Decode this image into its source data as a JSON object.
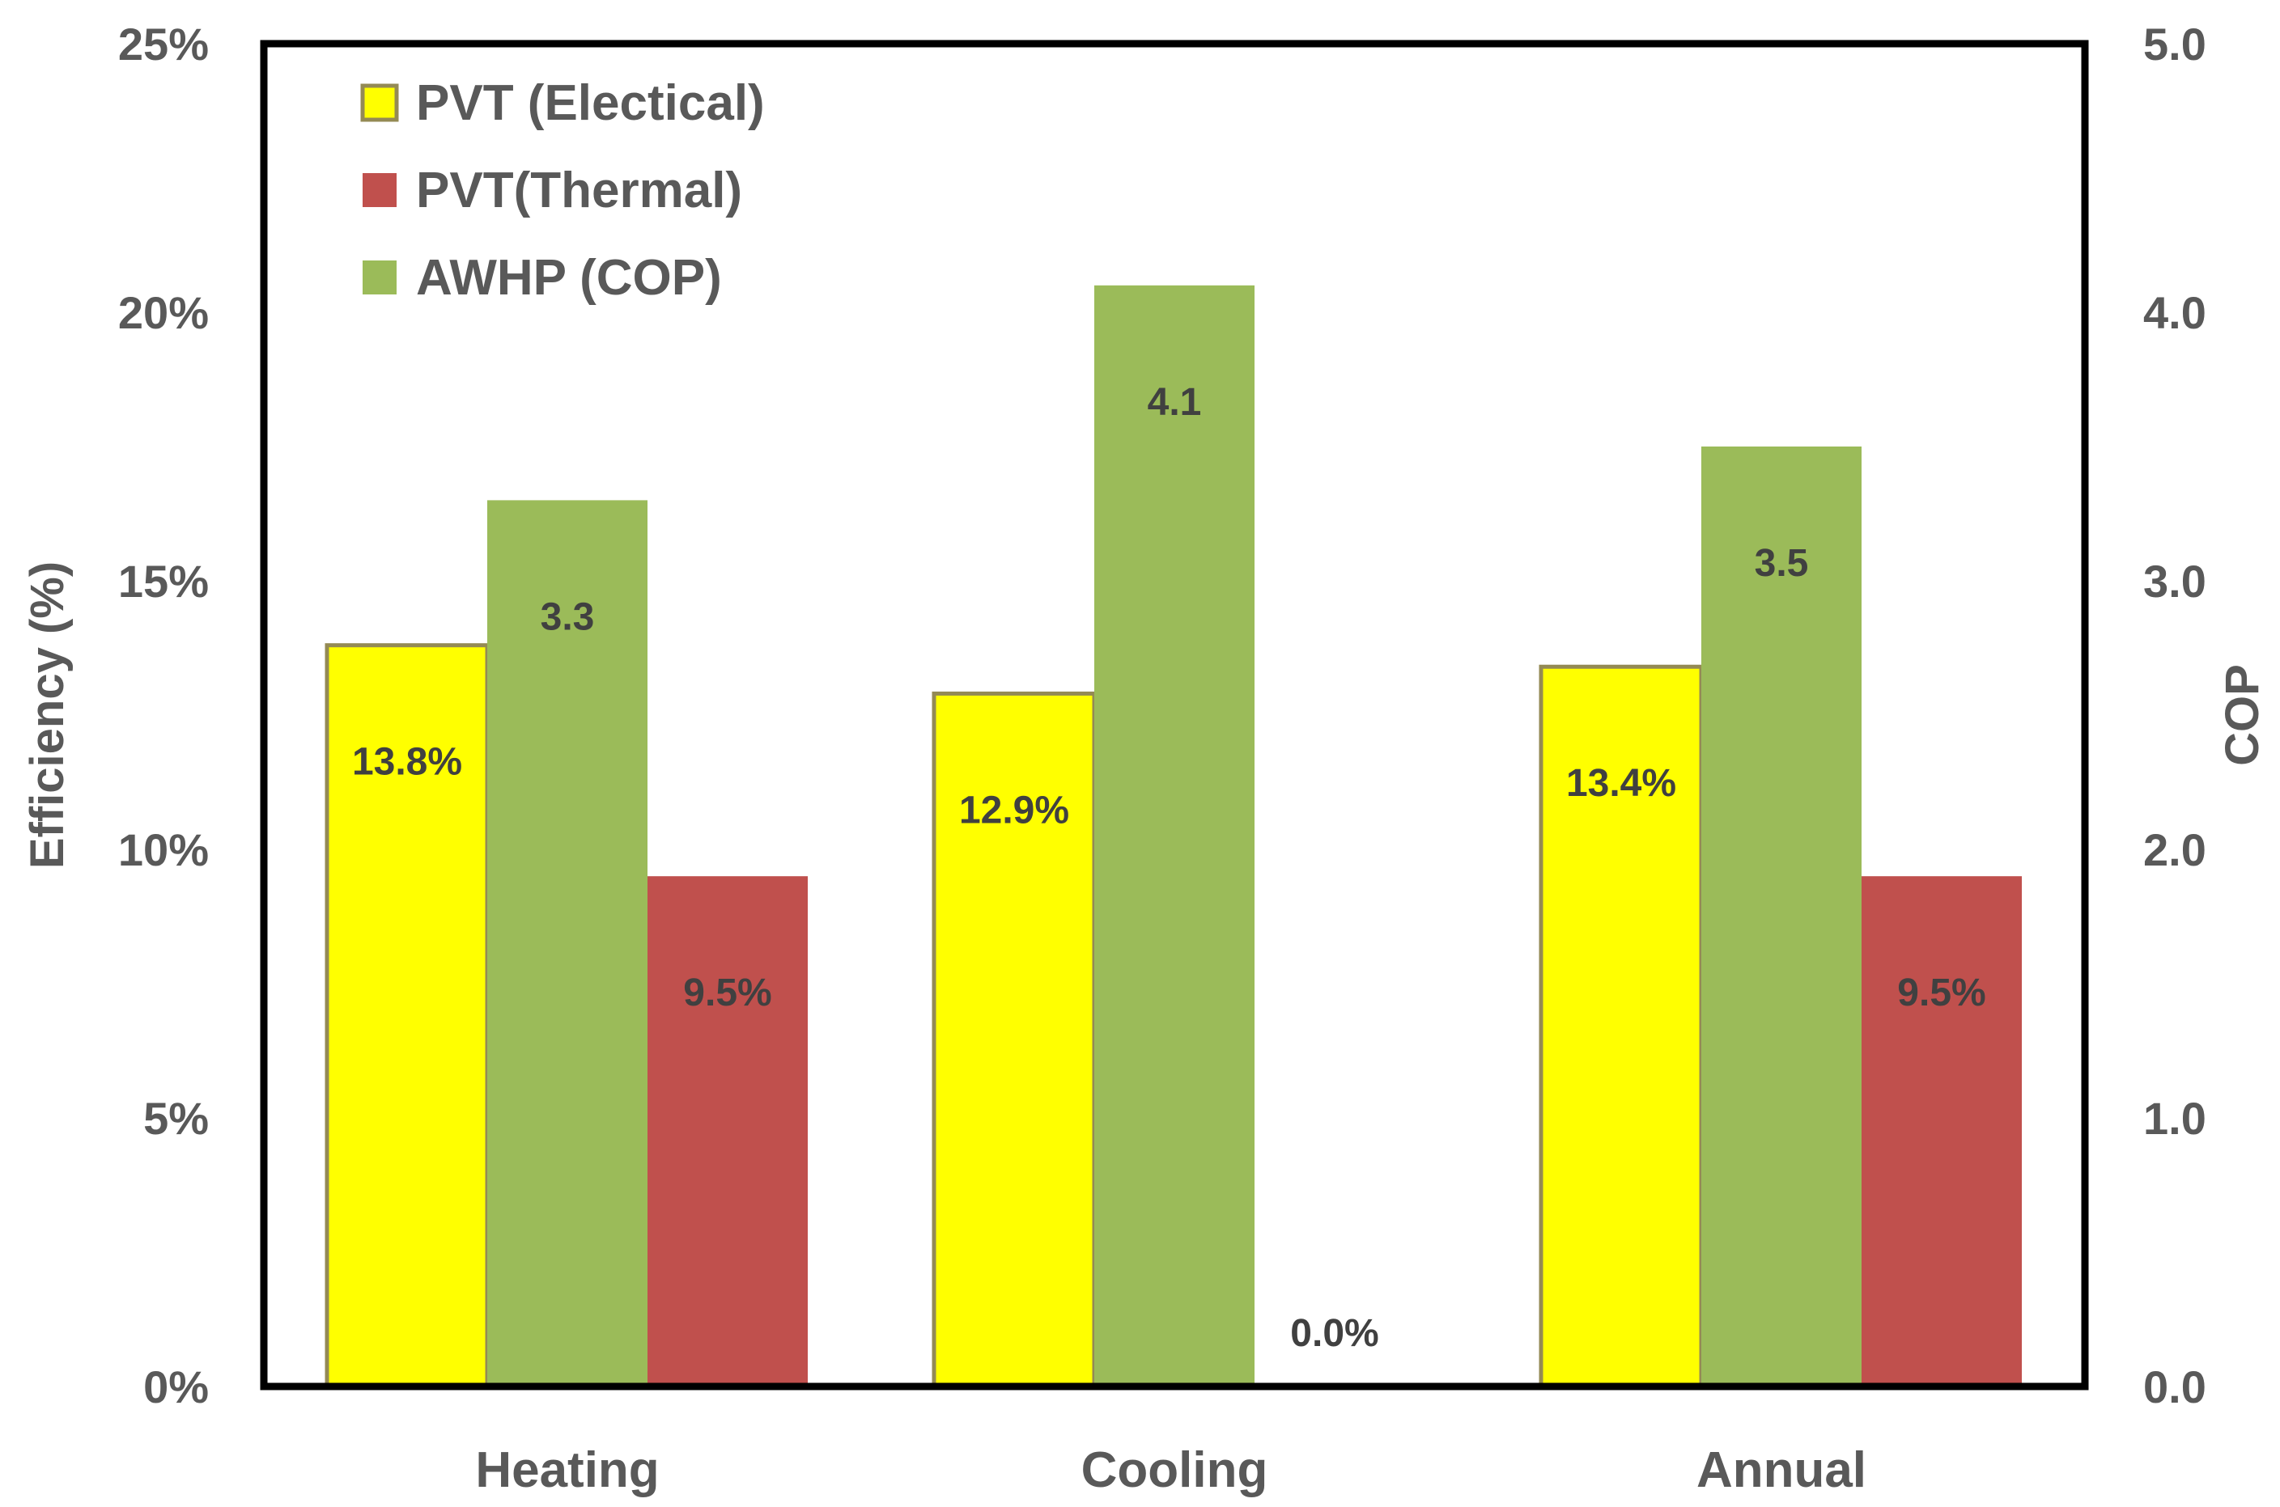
{
  "chart_data": {
    "type": "bar",
    "categories": [
      "Heating",
      "Cooling",
      "Annual"
    ],
    "series": [
      {
        "name": "PVT (Electical)",
        "axis": "left",
        "values": [
          13.8,
          12.9,
          13.4
        ],
        "labels": [
          "13.8%",
          "12.9%",
          "13.4%"
        ],
        "color": "#FFFF00",
        "border": "#948A54"
      },
      {
        "name": "AWHP (COP)",
        "axis": "right",
        "values": [
          3.3,
          4.1,
          3.5
        ],
        "labels": [
          "3.3",
          "4.1",
          "3.5"
        ],
        "color": "#9BBB59",
        "border": ""
      },
      {
        "name": "PVT(Thermal)",
        "axis": "left",
        "values": [
          9.5,
          0.0,
          9.5
        ],
        "labels": [
          "9.5%",
          "0.0%",
          "9.5%"
        ],
        "color": "#C0504D",
        "border": ""
      }
    ],
    "legend": [
      {
        "name": "PVT (Electical)",
        "color": "#FFFF00",
        "border": "#948A54"
      },
      {
        "name": "PVT(Thermal)",
        "color": "#C0504D",
        "border": ""
      },
      {
        "name": "AWHP (COP)",
        "color": "#9BBB59",
        "border": ""
      }
    ],
    "legend_position": "top-left",
    "ylabel": "Efficiency (%)",
    "y2label": "COP",
    "ylim": [
      0,
      25
    ],
    "y2lim": [
      0,
      5
    ],
    "yticks": [
      "0%",
      "5%",
      "10%",
      "15%",
      "20%",
      "25%"
    ],
    "y2ticks": [
      "0.0",
      "1.0",
      "2.0",
      "3.0",
      "4.0",
      "5.0"
    ],
    "grid": false
  }
}
